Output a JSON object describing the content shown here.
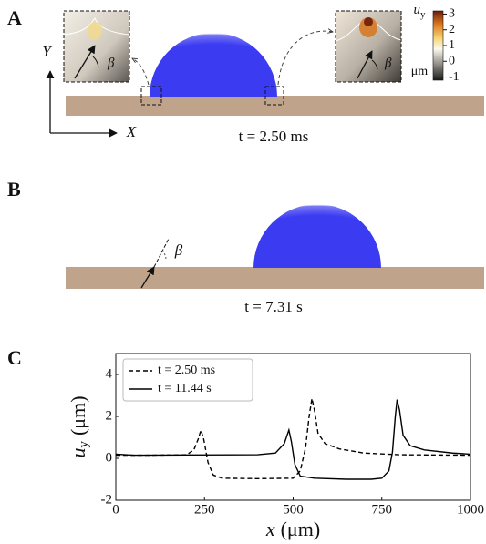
{
  "panels": {
    "a": {
      "label": "A",
      "time": "t = 2.50 ms",
      "x_axis": "X",
      "y_axis": "Y",
      "angle": "β",
      "colorbar": {
        "symbol": "u",
        "subscript": "y",
        "unit": "μm",
        "clim": [
          -1.2,
          3.2
        ],
        "ticks": [
          3,
          2,
          1,
          0,
          -1
        ]
      }
    },
    "b": {
      "label": "B",
      "time": "t = 7.31 s",
      "angle": "β"
    },
    "c": {
      "label": "C"
    }
  },
  "chart_data": {
    "type": "line",
    "xlabel": {
      "symbol": "x",
      "unit": "(μm)"
    },
    "ylabel": {
      "symbol": "u",
      "subscript": "y",
      "unit": "(μm)"
    },
    "xlim": [
      0,
      1000
    ],
    "xticks": [
      0,
      250,
      500,
      750,
      1000
    ],
    "ylim": [
      -2,
      5
    ],
    "yticks": [
      -2,
      0,
      2,
      4
    ],
    "legend": "upper left",
    "series": [
      {
        "name": "t = 2.50 ms",
        "color": "#000000",
        "style": "dashed",
        "x": [
          0,
          100,
          200,
          220,
          232,
          240,
          248,
          260,
          275,
          300,
          400,
          500,
          520,
          535,
          545,
          553,
          560,
          570,
          590,
          630,
          700,
          800,
          1000
        ],
        "values": [
          0.15,
          0.15,
          0.17,
          0.4,
          0.9,
          1.35,
          0.9,
          -0.2,
          -0.8,
          -0.95,
          -0.97,
          -0.95,
          -0.6,
          0.5,
          2.0,
          2.85,
          2.3,
          1.2,
          0.7,
          0.45,
          0.25,
          0.17,
          0.15
        ]
      },
      {
        "name": "t = 11.44 s",
        "color": "#000000",
        "style": "solid",
        "x": [
          0,
          50,
          200,
          400,
          450,
          475,
          488,
          495,
          505,
          520,
          560,
          650,
          720,
          750,
          770,
          780,
          788,
          793,
          800,
          810,
          830,
          870,
          950,
          1000
        ],
        "values": [
          0.2,
          0.15,
          0.16,
          0.17,
          0.25,
          0.7,
          1.35,
          0.8,
          -0.3,
          -0.85,
          -0.95,
          -1.0,
          -1.0,
          -0.95,
          -0.6,
          0.3,
          2.0,
          2.8,
          2.3,
          1.1,
          0.6,
          0.4,
          0.25,
          0.2
        ]
      }
    ]
  }
}
